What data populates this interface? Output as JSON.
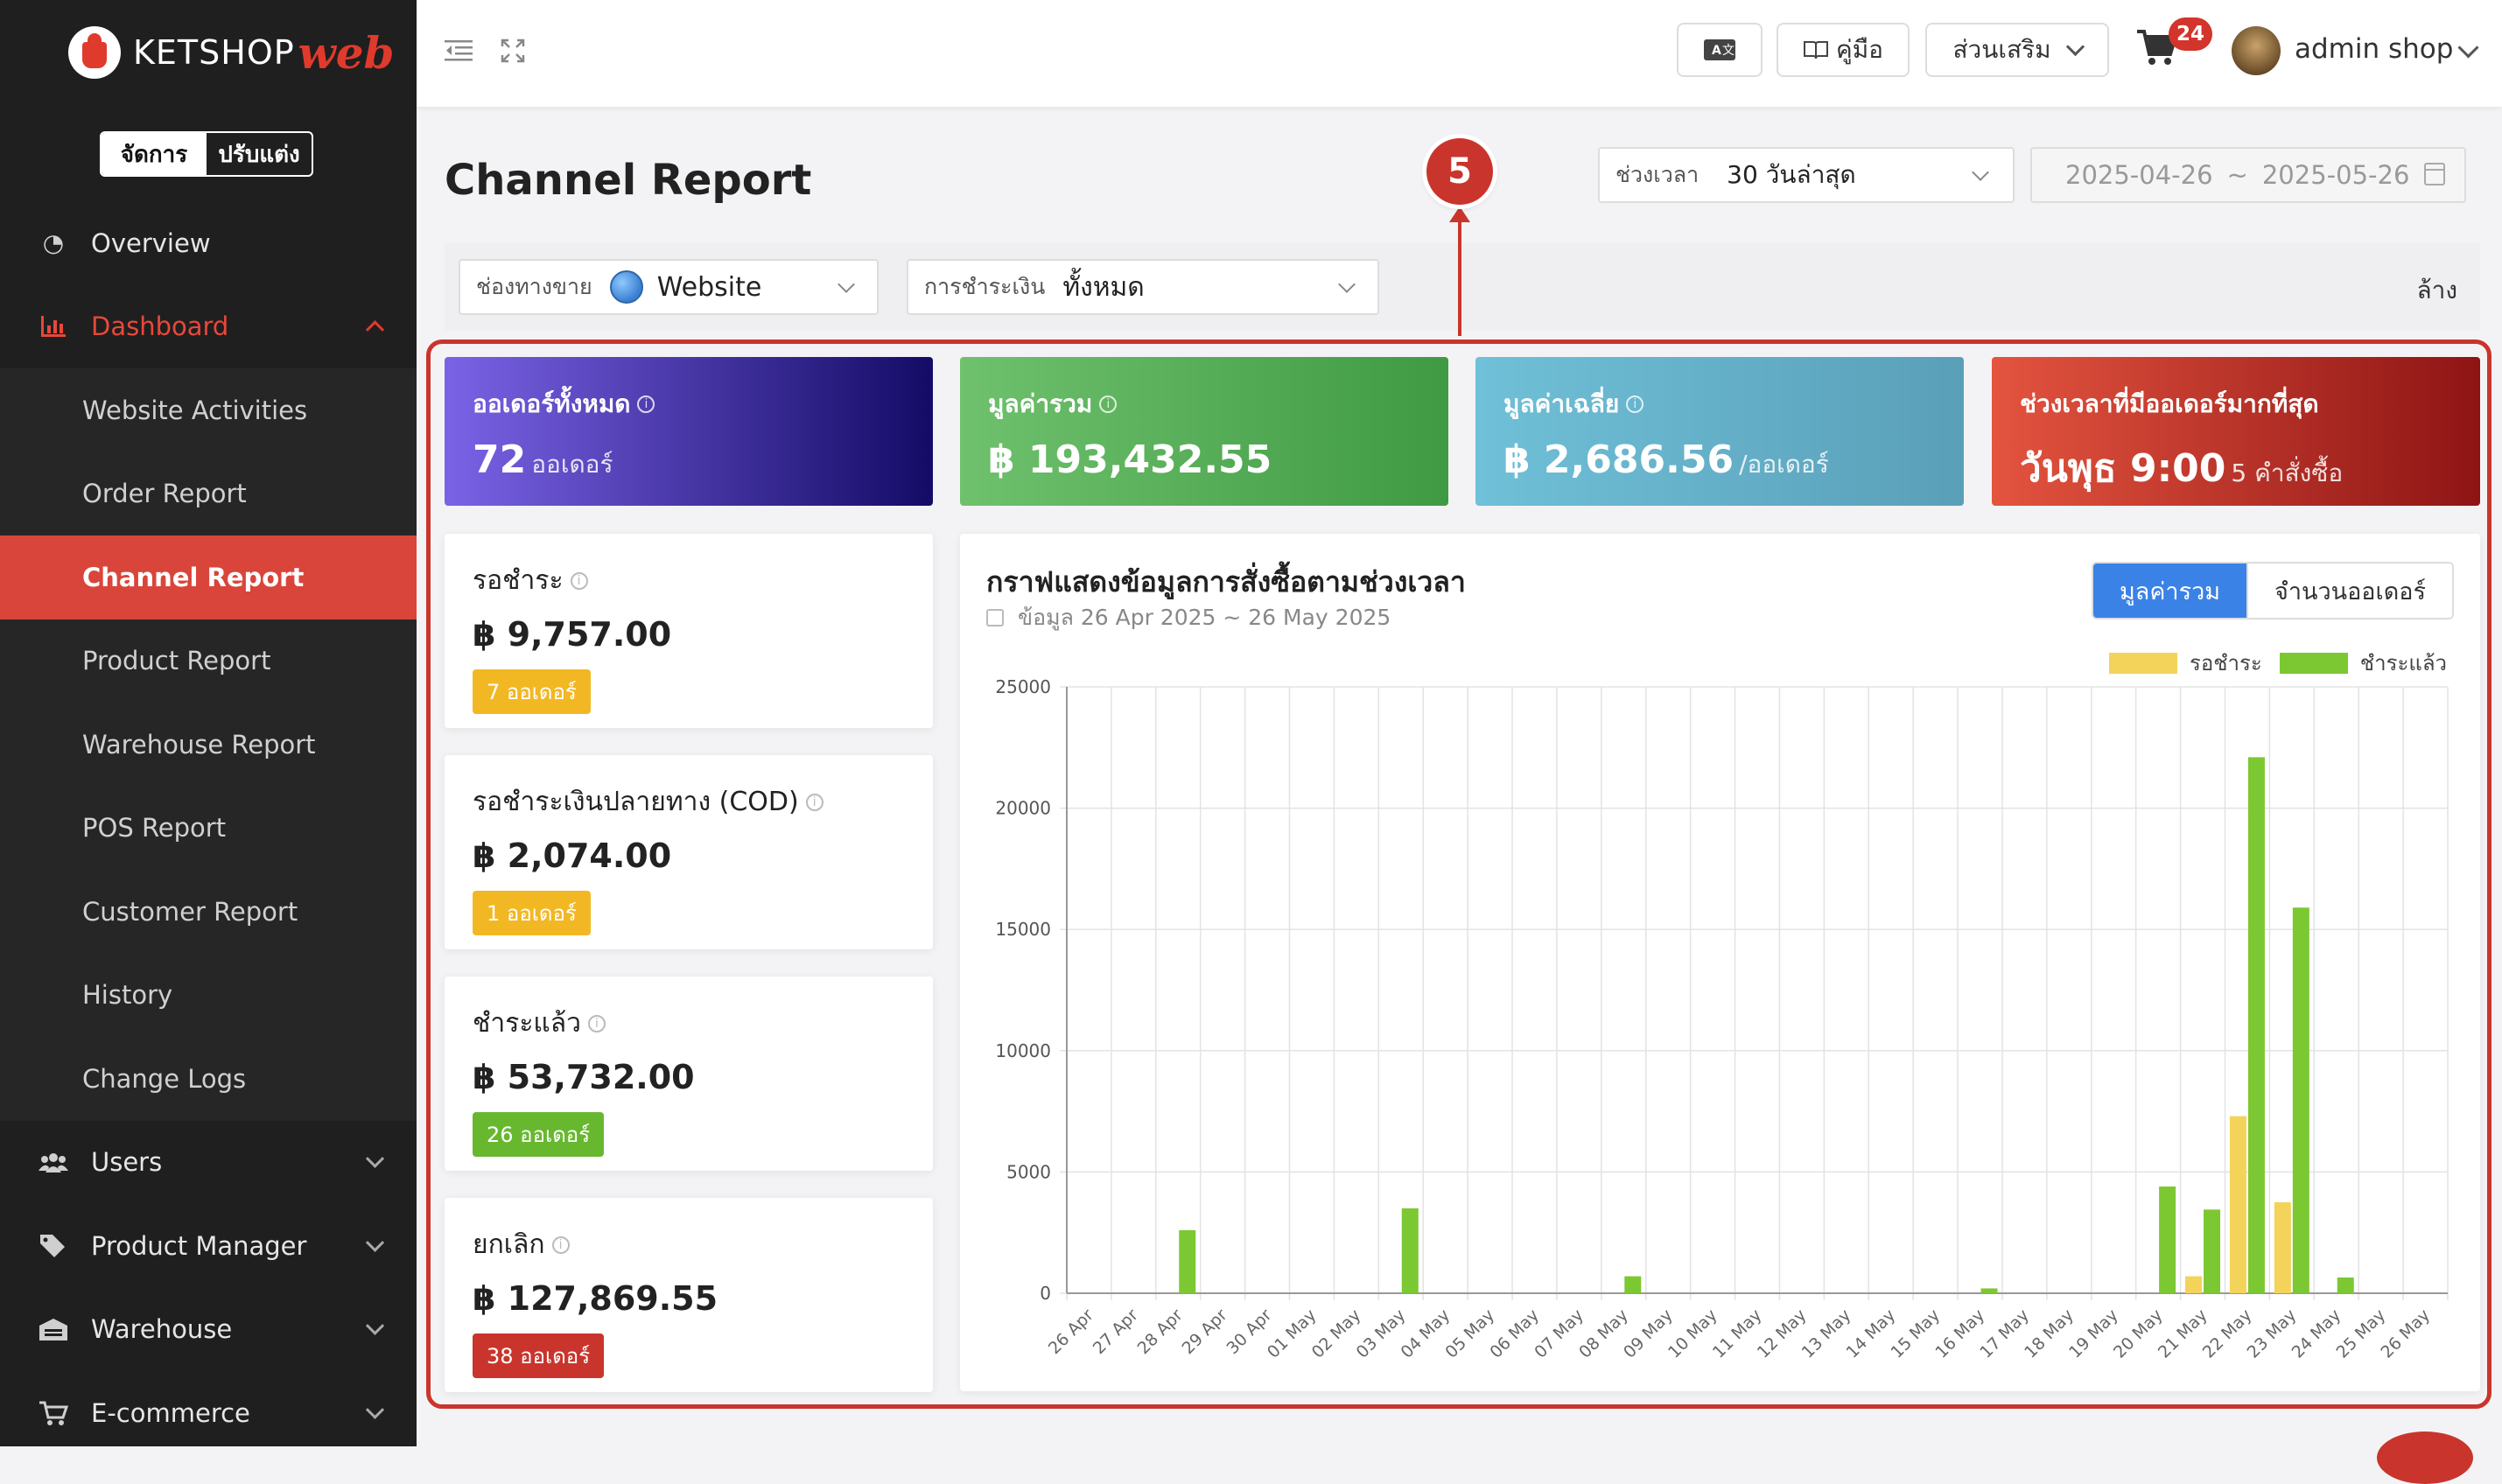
{
  "brand": {
    "name": "KETSHOP",
    "suffix": "web"
  },
  "mode_switch": {
    "manage": "จัดการ",
    "customize": "ปรับแต่ง"
  },
  "sidebar": {
    "overview": "Overview",
    "dashboard": "Dashboard",
    "dashboard_items": [
      "Website Activities",
      "Order Report",
      "Channel Report",
      "Product Report",
      "Warehouse Report",
      "POS Report",
      "Customer Report",
      "History",
      "Change Logs"
    ],
    "active_index": 2,
    "users": "Users",
    "product_manager": "Product Manager",
    "warehouse": "Warehouse",
    "ecommerce": "E-commerce"
  },
  "topbar": {
    "manual": "คู่มือ",
    "addons": "ส่วนเสริม",
    "cart_count": "24",
    "user": "admin shop"
  },
  "page": {
    "title": "Channel Report",
    "annotation": "5",
    "time_label": "ช่วงเวลา",
    "time_value": "30 วันล่าสุด",
    "date_from": "2025-04-26",
    "date_sep": "~",
    "date_to": "2025-05-26"
  },
  "filters": {
    "channel_label": "ช่องทางขาย",
    "channel_value": "Website",
    "payment_label": "การชำระเงิน",
    "payment_value": "ทั้งหมด",
    "clear": "ล้าง"
  },
  "stats": {
    "orders": {
      "label": "ออเดอร์ทั้งหมด",
      "value": "72",
      "unit": "ออเดอร์"
    },
    "total": {
      "label": "มูลค่ารวม",
      "value": "฿ 193,432.55"
    },
    "average": {
      "label": "มูลค่าเฉลี่ย",
      "value": "฿ 2,686.56",
      "unit": "/ออเดอร์"
    },
    "peak": {
      "label": "ช่วงเวลาที่มีออเดอร์มากที่สุด",
      "value": "วันพุธ 9:00",
      "unit": "5 คำสั่งซื้อ"
    }
  },
  "status_cards": [
    {
      "label": "รอชำระ",
      "amount": "฿ 9,757.00",
      "badge": "7 ออเดอร์",
      "color": "#f2b824"
    },
    {
      "label": "รอชำระเงินปลายทาง (COD)",
      "amount": "฿ 2,074.00",
      "badge": "1 ออเดอร์",
      "color": "#f2b824"
    },
    {
      "label": "ชำระแล้ว",
      "amount": "฿ 53,732.00",
      "badge": "26 ออเดอร์",
      "color": "#67b82f"
    },
    {
      "label": "ยกเลิก",
      "amount": "฿ 127,869.55",
      "badge": "38 ออเดอร์",
      "color": "#c9352c"
    }
  ],
  "chart_panel": {
    "title": "กราฟแสดงข้อมูลการสั่งซื้อตามช่วงเวลา",
    "subtitle": "ข้อมูล 26 Apr 2025 ~ 26 May 2025",
    "toggle_total": "มูลค่ารวม",
    "toggle_count": "จำนวนออเดอร์"
  },
  "chart_data": {
    "type": "bar",
    "categories": [
      "26 Apr",
      "27 Apr",
      "28 Apr",
      "29 Apr",
      "30 Apr",
      "01 May",
      "02 May",
      "03 May",
      "04 May",
      "05 May",
      "06 May",
      "07 May",
      "08 May",
      "09 May",
      "10 May",
      "11 May",
      "12 May",
      "13 May",
      "14 May",
      "15 May",
      "16 May",
      "17 May",
      "18 May",
      "19 May",
      "20 May",
      "21 May",
      "22 May",
      "23 May",
      "24 May",
      "25 May",
      "26 May"
    ],
    "series": [
      {
        "name": "รอชำระ",
        "color": "#f3d35a",
        "values": [
          0,
          0,
          0,
          0,
          0,
          0,
          0,
          0,
          0,
          0,
          0,
          0,
          0,
          0,
          0,
          0,
          0,
          0,
          0,
          0,
          0,
          0,
          0,
          0,
          0,
          700,
          7300,
          3750,
          0,
          0,
          0
        ]
      },
      {
        "name": "ชำระแล้ว",
        "color": "#7cc832",
        "values": [
          0,
          0,
          2600,
          0,
          0,
          0,
          0,
          3500,
          0,
          0,
          0,
          0,
          700,
          0,
          0,
          0,
          0,
          0,
          0,
          0,
          200,
          0,
          0,
          0,
          4400,
          3450,
          22100,
          15900,
          650,
          0,
          0
        ]
      }
    ],
    "ylim": [
      0,
      25000
    ],
    "yticks": [
      0,
      5000,
      10000,
      15000,
      20000,
      25000
    ],
    "grid": true,
    "legend": "top-right"
  }
}
